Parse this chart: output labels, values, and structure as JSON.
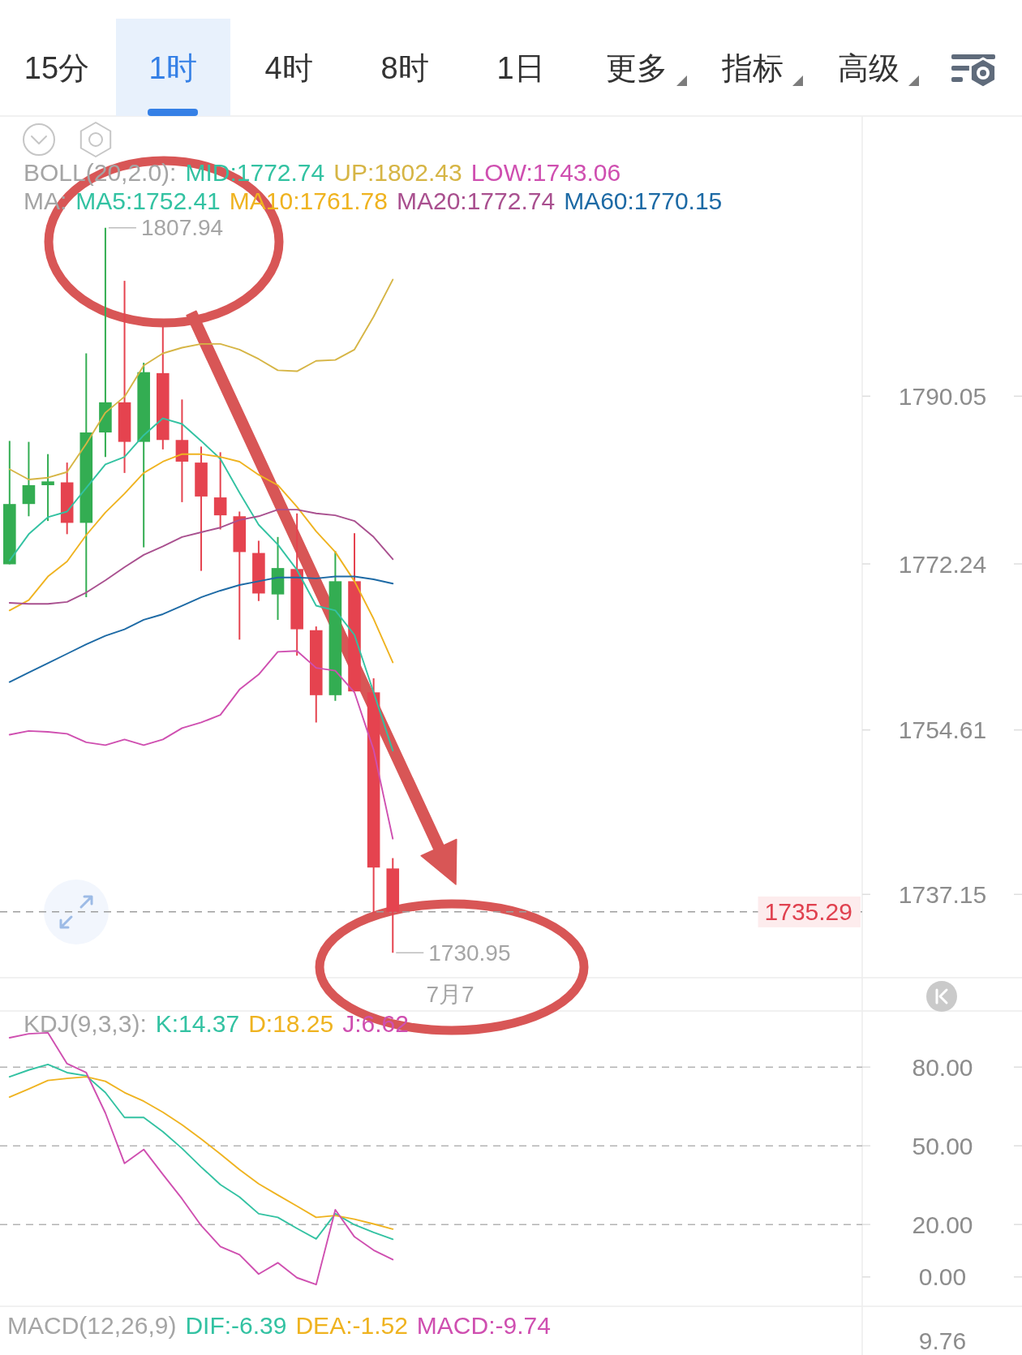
{
  "chart_data": [
    {
      "type": "other",
      "categories": [
        "15分",
        "1时",
        "4时",
        "8时",
        "1日",
        "更多",
        "指标",
        "高级"
      ],
      "colors": [
        "#333333",
        "#3580e6",
        "#333333",
        "#333333",
        "#333333",
        "#333333",
        "#333333",
        "#333333"
      ],
      "color": "#3580e6"
    },
    {
      "type": "candlestick",
      "title": "BOLL(20,2.0):",
      "legend_title": "MA:",
      "categories": [
        null,
        null,
        null,
        null,
        null,
        null,
        null,
        null,
        null,
        null,
        null,
        null,
        null,
        null,
        null,
        null,
        null,
        null,
        null,
        null,
        null,
        null,
        null,
        "7月7",
        null,
        null,
        null,
        null,
        null,
        null,
        null,
        null,
        null,
        null,
        null,
        null,
        null,
        null,
        null,
        null,
        null,
        null,
        null,
        null,
        null
      ],
      "ohlc": [
        [
          1772.2,
          1785.3,
          1772.2,
          1778.6
        ],
        [
          1778.6,
          1785.2,
          1777.3,
          1780.6
        ],
        [
          1780.6,
          1783.9,
          1776.8,
          1781.0
        ],
        [
          1780.9,
          1783.0,
          1775.4,
          1776.6
        ],
        [
          1776.6,
          1794.6,
          1768.7,
          1786.2
        ],
        [
          1786.2,
          1807.94,
          1783.6,
          1789.4
        ],
        [
          1789.4,
          1802.3,
          1781.9,
          1785.2
        ],
        [
          1785.2,
          1793.6,
          1774.0,
          1792.6
        ],
        [
          1792.5,
          1797.4,
          1784.4,
          1785.4
        ],
        [
          1785.4,
          1789.7,
          1778.8,
          1783.1
        ],
        [
          1783.0,
          1784.7,
          1771.5,
          1779.4
        ],
        [
          1779.3,
          1784.1,
          1775.9,
          1777.4
        ],
        [
          1777.3,
          1777.8,
          1764.2,
          1773.5
        ],
        [
          1773.4,
          1774.7,
          1768.3,
          1769.1
        ],
        [
          1769.0,
          1775.1,
          1766.3,
          1771.8
        ],
        [
          1771.7,
          1777.6,
          1762.5,
          1765.3
        ],
        [
          1765.2,
          1765.6,
          1755.4,
          1758.3
        ],
        [
          1758.3,
          1773.6,
          1757.7,
          1770.4
        ],
        [
          1770.4,
          1775.5,
          1758.7,
          1758.7
        ],
        [
          1758.6,
          1760.1,
          1735.2,
          1740.0
        ],
        [
          1739.9,
          1741.0,
          1730.95,
          1735.29
        ],
        null,
        null,
        null,
        null,
        null,
        null,
        null,
        null,
        null,
        null,
        null,
        null,
        null,
        null,
        null,
        null,
        null,
        null,
        null,
        null,
        null,
        null,
        null,
        null
      ],
      "colors": [
        "#33ad52",
        "#33ad52",
        "#33ad52",
        "#e5434f",
        "#33ad52",
        "#33ad52",
        "#e5434f",
        "#33ad52",
        "#e5434f",
        "#e5434f",
        "#e5434f",
        "#e5434f",
        "#e5434f",
        "#e5434f",
        "#33ad52",
        "#e5434f",
        "#e5434f",
        "#33ad52",
        "#e5434f",
        "#e5434f",
        "#e5434f",
        null,
        null,
        null,
        null,
        null,
        null,
        null,
        null,
        null,
        null,
        null,
        null,
        null,
        null,
        null,
        null,
        null,
        null,
        null,
        null,
        null,
        null,
        null,
        null
      ],
      "series": [
        {
          "name": "MID:1772.74",
          "type": "line",
          "color": "#33c2a2",
          "values": [
            null,
            null,
            null,
            null,
            null,
            null,
            null,
            null,
            null,
            null,
            null,
            null,
            null,
            null,
            null,
            null,
            null,
            null,
            null,
            null,
            null,
            null,
            null,
            null,
            null,
            null,
            null,
            null,
            null,
            null,
            null,
            null,
            null,
            null,
            null,
            null,
            null,
            null,
            null,
            null,
            null,
            null,
            null,
            null,
            null
          ]
        },
        {
          "name": "UP:1802.43",
          "type": "line",
          "color": "#d6b545",
          "values": [
            1782.3,
            1781.2,
            1781.4,
            1782.0,
            1785.0,
            1788.3,
            1790.0,
            1793.3,
            1794.6,
            1795.2,
            1795.6,
            1795.6,
            1795.0,
            1794.0,
            1792.8,
            1792.7,
            1793.8,
            1793.9,
            1795.0,
            1798.5,
            1802.43,
            null,
            null,
            null,
            null,
            null,
            null,
            null,
            null,
            null,
            null,
            null,
            null,
            null,
            null,
            null,
            null,
            null,
            null,
            null,
            null,
            null,
            null,
            null,
            null
          ]
        },
        {
          "name": "LOW:1743.06",
          "type": "line",
          "color": "#cf4fb0",
          "values": [
            1754.1,
            1754.5,
            1754.4,
            1754.2,
            1753.3,
            1753.0,
            1753.6,
            1753.0,
            1753.6,
            1754.8,
            1755.4,
            1756.2,
            1758.9,
            1760.5,
            1762.9,
            1763.0,
            1761.2,
            1760.9,
            1758.6,
            1752.5,
            1743.06,
            null,
            null,
            null,
            null,
            null,
            null,
            null,
            null,
            null,
            null,
            null,
            null,
            null,
            null,
            null,
            null,
            null,
            null,
            null,
            null,
            null,
            null,
            null,
            null
          ]
        },
        {
          "name": "MA5:1752.41",
          "type": "line",
          "color": "#33c2a2",
          "values": [
            1772.6,
            1775.4,
            1777.2,
            1777.8,
            1780.3,
            1782.8,
            1783.6,
            1785.9,
            1787.7,
            1787.1,
            1785.3,
            1783.4,
            1779.8,
            1776.4,
            1774.3,
            1771.6,
            1767.8,
            1767.3,
            1764.7,
            1758.6,
            1752.41,
            null,
            null,
            null,
            null,
            null,
            null,
            null,
            null,
            null,
            null,
            null,
            null,
            null,
            null,
            null,
            null,
            null,
            null,
            null,
            null,
            null,
            null,
            null,
            null
          ]
        },
        {
          "name": "MA10:1761.78",
          "type": "line",
          "color": "#efb320",
          "values": [
            1767.3,
            1768.4,
            1770.9,
            1772.5,
            1775.3,
            1777.7,
            1779.7,
            1781.9,
            1783.1,
            1783.9,
            1783.9,
            1783.6,
            1783.1,
            1781.7,
            1780.6,
            1778.3,
            1775.7,
            1773.5,
            1770.4,
            1766.4,
            1761.78,
            null,
            null,
            null,
            null,
            null,
            null,
            null,
            null,
            null,
            null,
            null,
            null,
            null,
            null,
            null,
            null,
            null,
            null,
            null,
            null,
            null,
            null,
            null,
            null
          ]
        },
        {
          "name": "MA20:1772.74",
          "type": "line",
          "color": "#a9508f",
          "values": [
            1768.1,
            1768.0,
            1768.0,
            1768.2,
            1769.2,
            1770.5,
            1771.9,
            1773.2,
            1774.1,
            1775.1,
            1775.6,
            1776.1,
            1776.9,
            1777.3,
            1778.0,
            1778.0,
            1777.6,
            1777.4,
            1776.8,
            1775.1,
            1772.74,
            null,
            null,
            null,
            null,
            null,
            null,
            null,
            null,
            null,
            null,
            null,
            null,
            null,
            null,
            null,
            null,
            null,
            null,
            null,
            null,
            null,
            null,
            null,
            null
          ]
        },
        {
          "name": "MA60:1770.15",
          "type": "line",
          "color": "#1d6aa5",
          "values": [
            1759.7,
            1760.7,
            1761.7,
            1762.7,
            1763.7,
            1764.6,
            1765.3,
            1766.3,
            1766.9,
            1767.8,
            1768.7,
            1769.4,
            1770.0,
            1770.4,
            1770.8,
            1770.8,
            1770.7,
            1770.9,
            1770.9,
            1770.6,
            1770.15,
            null,
            null,
            null,
            null,
            null,
            null,
            null,
            null,
            null,
            null,
            null,
            null,
            null,
            null,
            null,
            null,
            null,
            null,
            null,
            null,
            null,
            null,
            null,
            null
          ]
        }
      ],
      "ylim": [
        1728.3,
        1819.8
      ],
      "yticks": [
        {
          "value": 1790.05,
          "label": "1790.05"
        },
        {
          "value": 1772.24,
          "label": "1772.24"
        },
        {
          "value": 1754.61,
          "label": "1754.61"
        },
        {
          "value": 1737.15,
          "label": "1737.15"
        }
      ],
      "ref_lines": [
        {
          "axis": "y",
          "value": 1735.29,
          "label": "1735.29",
          "color": "#9e9e9e",
          "line_style": "dashed"
        }
      ],
      "annotations": [
        "1807.94",
        "1730.95"
      ]
    },
    {
      "type": "line",
      "title": "KDJ(9,3,3):",
      "tick_labels": "y",
      "categories": [
        null,
        null,
        null,
        null,
        null,
        null,
        null,
        null,
        null,
        null,
        null,
        null,
        null,
        null,
        null,
        null,
        null,
        null,
        null,
        null,
        null,
        null,
        null,
        null,
        null,
        null,
        null,
        null,
        null,
        null,
        null,
        null,
        null,
        null,
        null,
        null,
        null,
        null,
        null,
        null,
        null,
        null,
        null,
        null,
        null
      ],
      "series": [
        {
          "name": "K:14.37",
          "color": "#33c2a2",
          "values": [
            76.3,
            78.9,
            81.0,
            77.9,
            76.7,
            70.3,
            60.8,
            60.8,
            55.4,
            49.0,
            41.9,
            35.2,
            30.5,
            24.1,
            22.7,
            18.5,
            14.5,
            24.1,
            19.9,
            17.0,
            14.37,
            null,
            null,
            null,
            null,
            null,
            null,
            null,
            null,
            null,
            null,
            null,
            null,
            null,
            null,
            null,
            null,
            null,
            null,
            null,
            null,
            null,
            null,
            null,
            null
          ]
        },
        {
          "name": "D:18.25",
          "color": "#efb320",
          "values": [
            68.6,
            71.7,
            74.9,
            75.7,
            76.3,
            74.6,
            70.3,
            67.0,
            62.8,
            58.0,
            52.6,
            46.9,
            40.9,
            35.5,
            31.2,
            27.0,
            22.7,
            23.4,
            22.0,
            20.2,
            18.25,
            null,
            null,
            null,
            null,
            null,
            null,
            null,
            null,
            null,
            null,
            null,
            null,
            null,
            null,
            null,
            null,
            null,
            null,
            null,
            null,
            null,
            null,
            null,
            null
          ]
        },
        {
          "name": "J:6.62",
          "color": "#cf4fb0",
          "values": [
            91.2,
            92.7,
            93.1,
            81.3,
            77.9,
            62.5,
            43.3,
            48.6,
            39.1,
            29.8,
            19.6,
            11.6,
            8.5,
            1.1,
            5.4,
            -0.3,
            -2.9,
            25.6,
            15.3,
            10.2,
            6.62,
            null,
            null,
            null,
            null,
            null,
            null,
            null,
            null,
            null,
            null,
            null,
            null,
            null,
            null,
            null,
            null,
            null,
            null,
            null,
            null,
            null,
            null,
            null,
            null
          ]
        }
      ],
      "ylim": [
        -11.2,
        101.4
      ],
      "yticks": [
        {
          "value": 80,
          "label": "80.00"
        },
        {
          "value": 50,
          "label": "50.00"
        },
        {
          "value": 20,
          "label": "20.00"
        },
        {
          "value": 0,
          "label": "0.00"
        }
      ],
      "ref_lines": [
        {
          "axis": "y",
          "value": 80,
          "color": "#b3b3b3",
          "line_style": "dashed"
        },
        {
          "axis": "y",
          "value": 50,
          "color": "#b3b3b3",
          "line_style": "dashed"
        },
        {
          "axis": "y",
          "value": 20,
          "color": "#b3b3b3",
          "line_style": "dashed"
        }
      ]
    },
    {
      "type": "other",
      "title": "MACD(12,26,9)",
      "categories": [
        "DIF:-6.39",
        "DEA:-1.52",
        "MACD:-9.74"
      ],
      "colors": [
        "#33c2a2",
        "#efb320",
        "#cf4fb0"
      ],
      "annotations": [
        "9.76"
      ]
    }
  ]
}
